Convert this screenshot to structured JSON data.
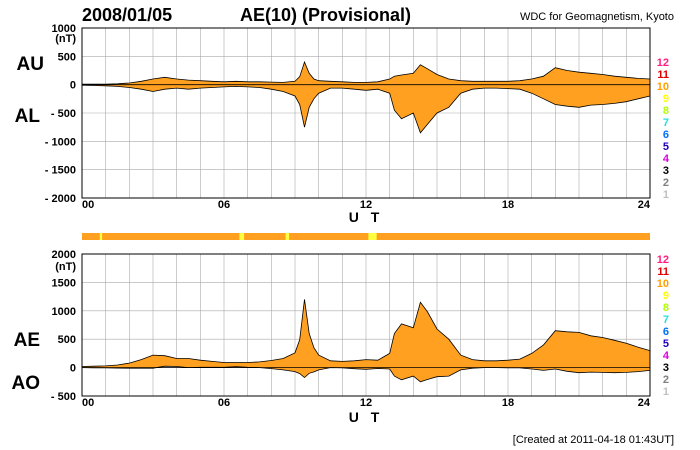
{
  "header": {
    "date": "2008/01/05",
    "title": "AE(10) (Provisional)",
    "source": "WDC for Geomagnetism, Kyoto"
  },
  "footer": {
    "created": "[Created at 2011-04-18 01:43UT]"
  },
  "colors": {
    "fill": "#ffa020",
    "status_bar": "#ffa020",
    "grid": "#aaaaaa",
    "axis": "#000000"
  },
  "legend": {
    "items": [
      {
        "label": "12",
        "color": "#ff2080"
      },
      {
        "label": "11",
        "color": "#e00000"
      },
      {
        "label": "10",
        "color": "#ffa000"
      },
      {
        "label": "9",
        "color": "#ffff00"
      },
      {
        "label": "8",
        "color": "#b0ff00"
      },
      {
        "label": "7",
        "color": "#20e0e0"
      },
      {
        "label": "6",
        "color": "#0070ff"
      },
      {
        "label": "5",
        "color": "#2000c0"
      },
      {
        "label": "4",
        "color": "#e000e0"
      },
      {
        "label": "3",
        "color": "#000000"
      },
      {
        "label": "2",
        "color": "#808080"
      },
      {
        "label": "1",
        "color": "#c0c0c0"
      }
    ]
  },
  "status_bar": {
    "highlights": [
      {
        "start_ut": 0.75,
        "end_ut": 0.85,
        "color": "#ffff40"
      },
      {
        "start_ut": 6.65,
        "end_ut": 6.85,
        "color": "#ffff40"
      },
      {
        "start_ut": 8.6,
        "end_ut": 8.75,
        "color": "#ffff40"
      },
      {
        "start_ut": 12.1,
        "end_ut": 12.45,
        "color": "#ffff40"
      }
    ]
  },
  "chart_data": [
    {
      "type": "area",
      "panel": "AU/AL",
      "label_upper": "AU",
      "label_lower": "AL",
      "unit": "(nT)",
      "xlabel": "U T",
      "xlim": [
        0,
        24
      ],
      "xticks": [
        0,
        6,
        12,
        18,
        24
      ],
      "xtick_labels": [
        "00",
        "06",
        "12",
        "18",
        "24"
      ],
      "ylim": [
        -2000,
        1000
      ],
      "yticks": [
        1000,
        500,
        0,
        -500,
        -1000,
        -1500,
        -2000
      ],
      "ytick_labels": [
        "1000",
        "500",
        "0",
        "- 500",
        "- 1000",
        "- 1500",
        "- 2000"
      ],
      "grid": true,
      "x": [
        0,
        0.5,
        1,
        1.5,
        2,
        2.5,
        3,
        3.5,
        4,
        4.5,
        5,
        5.5,
        6,
        6.5,
        7,
        7.5,
        8,
        8.5,
        9,
        9.2,
        9.4,
        9.6,
        9.8,
        10,
        10.5,
        11,
        11.5,
        12,
        12.5,
        13,
        13.2,
        13.5,
        14,
        14.3,
        14.6,
        15,
        15.5,
        16,
        16.5,
        17,
        17.5,
        18,
        18.5,
        19,
        19.5,
        20,
        20.5,
        21,
        21.5,
        22,
        22.5,
        23,
        23.5,
        24
      ],
      "series": [
        {
          "name": "AU",
          "values": [
            10,
            10,
            10,
            15,
            30,
            60,
            100,
            130,
            100,
            80,
            70,
            60,
            50,
            60,
            50,
            50,
            45,
            40,
            60,
            140,
            400,
            200,
            100,
            70,
            60,
            50,
            40,
            40,
            50,
            100,
            150,
            170,
            200,
            350,
            280,
            180,
            100,
            70,
            60,
            60,
            60,
            60,
            70,
            100,
            150,
            300,
            250,
            220,
            200,
            180,
            150,
            130,
            110,
            100
          ]
        },
        {
          "name": "AL",
          "values": [
            -10,
            -15,
            -20,
            -30,
            -50,
            -80,
            -120,
            -80,
            -60,
            -80,
            -60,
            -50,
            -40,
            -30,
            -40,
            -50,
            -80,
            -120,
            -200,
            -350,
            -750,
            -400,
            -250,
            -150,
            -60,
            -60,
            -80,
            -100,
            -80,
            -150,
            -450,
            -600,
            -500,
            -850,
            -700,
            -500,
            -400,
            -150,
            -80,
            -60,
            -60,
            -70,
            -80,
            -150,
            -250,
            -350,
            -380,
            -400,
            -360,
            -350,
            -330,
            -300,
            -250,
            -200
          ]
        }
      ]
    },
    {
      "type": "area",
      "panel": "AE/AO",
      "label_upper": "AE",
      "label_lower": "AO",
      "unit": "(nT)",
      "xlabel": "U T",
      "xlim": [
        0,
        24
      ],
      "xticks": [
        0,
        6,
        12,
        18,
        24
      ],
      "xtick_labels": [
        "00",
        "06",
        "12",
        "18",
        "24"
      ],
      "ylim": [
        -500,
        2000
      ],
      "yticks": [
        2000,
        1500,
        1000,
        500,
        0,
        -500
      ],
      "ytick_labels": [
        "2000",
        "1500",
        "1000",
        "500",
        "0",
        "- 500"
      ],
      "grid": true,
      "x": [
        0,
        0.5,
        1,
        1.5,
        2,
        2.5,
        3,
        3.5,
        4,
        4.5,
        5,
        5.5,
        6,
        6.5,
        7,
        7.5,
        8,
        8.5,
        9,
        9.2,
        9.4,
        9.6,
        9.8,
        10,
        10.5,
        11,
        11.5,
        12,
        12.5,
        13,
        13.2,
        13.5,
        14,
        14.3,
        14.6,
        15,
        15.5,
        16,
        16.5,
        17,
        17.5,
        18,
        18.5,
        19,
        19.5,
        20,
        20.5,
        21,
        21.5,
        22,
        22.5,
        23,
        23.5,
        24
      ],
      "series": [
        {
          "name": "AE",
          "values": [
            20,
            25,
            30,
            45,
            80,
            140,
            220,
            210,
            160,
            160,
            130,
            110,
            90,
            90,
            90,
            100,
            125,
            160,
            260,
            490,
            1200,
            600,
            350,
            220,
            120,
            110,
            120,
            140,
            130,
            250,
            600,
            770,
            700,
            1150,
            980,
            680,
            500,
            220,
            140,
            120,
            120,
            130,
            150,
            250,
            400,
            650,
            630,
            620,
            560,
            530,
            480,
            430,
            360,
            300
          ]
        },
        {
          "name": "AO",
          "values": [
            0,
            -3,
            -5,
            -8,
            -10,
            -10,
            -10,
            25,
            20,
            0,
            5,
            5,
            5,
            15,
            5,
            0,
            -18,
            -40,
            -70,
            -105,
            -175,
            -100,
            -75,
            -40,
            0,
            -5,
            -20,
            -30,
            -15,
            -25,
            -150,
            -215,
            -150,
            -250,
            -210,
            -160,
            -150,
            -40,
            -10,
            0,
            0,
            -5,
            -5,
            -25,
            -50,
            -25,
            -65,
            -90,
            -80,
            -85,
            -90,
            -85,
            -70,
            -50
          ]
        }
      ]
    }
  ]
}
